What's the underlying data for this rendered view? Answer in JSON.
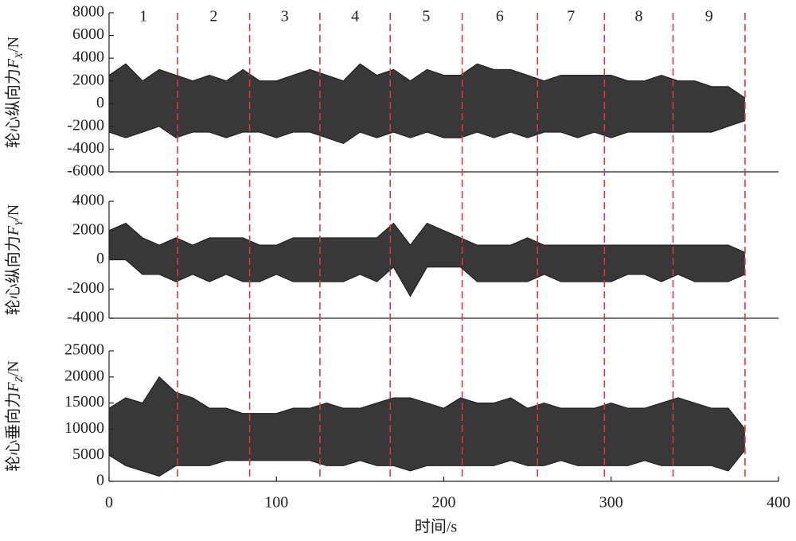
{
  "chart_data": [
    {
      "type": "band",
      "ylabel": [
        "轮心纵向力",
        "F",
        "X",
        "/N"
      ],
      "segments": [
        "1",
        "2",
        "3",
        "4",
        "5",
        "6",
        "7",
        "8",
        "9"
      ],
      "boundaries": [
        41,
        84,
        126,
        168,
        211,
        256,
        296,
        337,
        380
      ],
      "boundary_color": "#d9363e",
      "xlim": [
        0,
        400
      ],
      "ylim": [
        -6000,
        8000
      ],
      "yticks": [
        -6000,
        -4000,
        -2000,
        0,
        2000,
        4000,
        6000,
        8000
      ],
      "x": [
        0,
        10,
        20,
        30,
        40,
        50,
        60,
        70,
        80,
        90,
        100,
        110,
        120,
        130,
        140,
        150,
        160,
        170,
        180,
        190,
        200,
        210,
        220,
        230,
        240,
        250,
        260,
        270,
        280,
        290,
        300,
        310,
        320,
        330,
        340,
        350,
        360,
        370,
        380
      ],
      "series": [
        {
          "color": "#222222",
          "values": [
            2500,
            3500,
            2000,
            3000,
            2500,
            2000,
            2500,
            2000,
            3000,
            2000,
            2000,
            2500,
            3000,
            2500,
            2000,
            3500,
            2500,
            3000,
            2000,
            3000,
            2500,
            2500,
            3500,
            3000,
            3000,
            2500,
            2000,
            2500,
            2500,
            2500,
            2500,
            2000,
            2000,
            2500,
            2000,
            2000,
            1500,
            1500,
            500
          ]
        },
        {
          "color": "#222222",
          "values": [
            -2500,
            -3000,
            -2500,
            -2000,
            -3000,
            -2500,
            -2500,
            -3000,
            -2500,
            -2500,
            -3000,
            -2500,
            -2500,
            -3000,
            -3500,
            -2500,
            -3000,
            -2500,
            -3000,
            -2500,
            -3000,
            -3000,
            -2500,
            -3000,
            -2500,
            -3000,
            -2500,
            -2500,
            -3000,
            -2500,
            -3000,
            -2500,
            -2500,
            -2500,
            -2500,
            -2500,
            -2500,
            -2000,
            -1500
          ]
        }
      ]
    },
    {
      "type": "band",
      "ylabel": [
        "轮心纵向力",
        "F",
        "Y",
        "/N"
      ],
      "xlim": [
        0,
        400
      ],
      "ylim": [
        -4000,
        4000
      ],
      "yticks": [
        -4000,
        -2000,
        0,
        2000,
        4000
      ],
      "x": [
        0,
        10,
        20,
        30,
        40,
        50,
        60,
        70,
        80,
        90,
        100,
        110,
        120,
        130,
        140,
        150,
        160,
        170,
        180,
        190,
        200,
        210,
        220,
        230,
        240,
        250,
        260,
        270,
        280,
        290,
        300,
        310,
        320,
        330,
        340,
        350,
        360,
        370,
        380
      ],
      "series": [
        {
          "color": "#222222",
          "values": [
            2000,
            2500,
            1500,
            1000,
            1500,
            1000,
            1500,
            1500,
            1500,
            1000,
            1000,
            1500,
            1500,
            1500,
            1500,
            1500,
            1500,
            2500,
            1000,
            2500,
            2000,
            1500,
            1000,
            1000,
            1000,
            1500,
            1000,
            1000,
            1000,
            1000,
            1000,
            1000,
            1000,
            1000,
            1000,
            1000,
            1000,
            1000,
            500
          ]
        },
        {
          "color": "#222222",
          "values": [
            0,
            0,
            -1000,
            -1000,
            -1500,
            -1000,
            -1500,
            -1000,
            -1500,
            -1500,
            -1000,
            -1500,
            -1500,
            -1500,
            -1500,
            -1000,
            -1500,
            -500,
            -2500,
            -500,
            -500,
            -500,
            -1500,
            -1500,
            -1500,
            -1500,
            -1000,
            -1500,
            -1500,
            -1500,
            -1500,
            -1000,
            -1000,
            -1500,
            -1000,
            -1500,
            -1500,
            -1500,
            -1000
          ]
        }
      ]
    },
    {
      "type": "band",
      "ylabel": [
        "轮心垂向力",
        "F",
        "Z",
        "/N"
      ],
      "xlabel": "时间/s",
      "xlim": [
        0,
        400
      ],
      "xticks": [
        0,
        100,
        200,
        300,
        400
      ],
      "ylim": [
        0,
        25000
      ],
      "yticks": [
        0,
        5000,
        10000,
        15000,
        20000,
        25000
      ],
      "x": [
        0,
        10,
        20,
        30,
        40,
        50,
        60,
        70,
        80,
        90,
        100,
        110,
        120,
        130,
        140,
        150,
        160,
        170,
        180,
        190,
        200,
        210,
        220,
        230,
        240,
        250,
        260,
        270,
        280,
        290,
        300,
        310,
        320,
        330,
        340,
        350,
        360,
        370,
        380
      ],
      "series": [
        {
          "color": "#222222",
          "values": [
            14000,
            16000,
            15000,
            20000,
            17000,
            16000,
            14000,
            14000,
            13000,
            13000,
            13000,
            14000,
            14000,
            15000,
            14000,
            14000,
            15000,
            16000,
            16000,
            15000,
            14000,
            16000,
            15000,
            15000,
            16000,
            14000,
            15000,
            14000,
            14000,
            14000,
            15000,
            14000,
            14000,
            15000,
            16000,
            15000,
            14000,
            14000,
            10000
          ]
        },
        {
          "color": "#222222",
          "values": [
            5000,
            3000,
            2000,
            1000,
            3000,
            3000,
            3000,
            4000,
            4000,
            4000,
            4000,
            4000,
            4000,
            3000,
            3000,
            4000,
            3000,
            3000,
            2000,
            3000,
            3000,
            3000,
            3000,
            3000,
            4000,
            3000,
            3000,
            4000,
            3000,
            3000,
            3000,
            3000,
            4000,
            3000,
            3000,
            3000,
            3000,
            2000,
            6000
          ]
        }
      ]
    }
  ]
}
